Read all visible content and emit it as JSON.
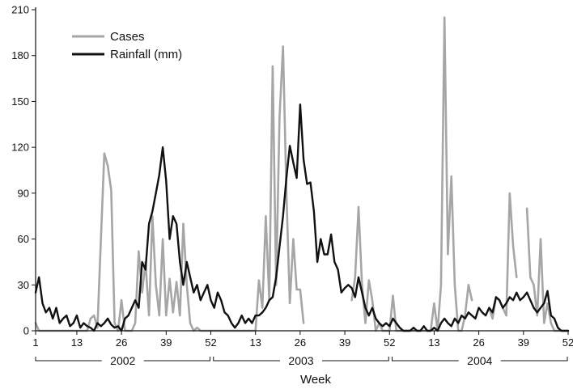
{
  "chart_data": {
    "type": "line",
    "xlabel": "Week",
    "ylabel": "",
    "ylim": [
      0,
      210
    ],
    "yticks": [
      0,
      30,
      60,
      90,
      120,
      150,
      180,
      210
    ],
    "xticks": [
      {
        "label": "1",
        "x": 1
      },
      {
        "label": "13",
        "x": 13
      },
      {
        "label": "26",
        "x": 26
      },
      {
        "label": "39",
        "x": 39
      },
      {
        "label": "52",
        "x": 52
      },
      {
        "label": "13",
        "x": 65
      },
      {
        "label": "26",
        "x": 78
      },
      {
        "label": "39",
        "x": 91
      },
      {
        "label": "52",
        "x": 104
      },
      {
        "label": "13",
        "x": 117
      },
      {
        "label": "26",
        "x": 130
      },
      {
        "label": "39",
        "x": 143
      },
      {
        "label": "52",
        "x": 156
      }
    ],
    "xlim": [
      1,
      156
    ],
    "years": [
      {
        "label": "2002",
        "start": 1,
        "end": 52
      },
      {
        "label": "2003",
        "start": 53,
        "end": 104
      },
      {
        "label": "2004",
        "start": 105,
        "end": 156
      }
    ],
    "legend": {
      "position": "top-left"
    },
    "series": [
      {
        "name": "Cases",
        "color": "#a6a6a6",
        "points": [
          [
            1,
            5
          ],
          [
            2,
            0
          ],
          [
            3,
            0
          ],
          [
            4,
            0
          ],
          [
            5,
            0
          ],
          [
            6,
            0
          ],
          [
            7,
            0
          ],
          [
            8,
            0
          ],
          [
            9,
            0
          ],
          [
            10,
            0
          ],
          [
            11,
            0
          ],
          [
            12,
            0
          ],
          [
            13,
            0
          ],
          [
            14,
            0
          ],
          [
            15,
            0
          ],
          [
            16,
            0
          ],
          [
            17,
            8
          ],
          [
            18,
            10
          ],
          [
            19,
            2
          ],
          [
            20,
            60
          ],
          [
            21,
            116
          ],
          [
            22,
            108
          ],
          [
            23,
            92
          ],
          [
            24,
            5
          ],
          [
            25,
            0
          ],
          [
            26,
            20
          ],
          [
            27,
            0
          ],
          [
            28,
            0
          ],
          [
            29,
            0
          ],
          [
            30,
            5
          ],
          [
            31,
            52
          ],
          [
            32,
            25
          ],
          [
            33,
            45
          ],
          [
            34,
            10
          ],
          [
            35,
            75
          ],
          [
            36,
            30
          ],
          [
            37,
            10
          ],
          [
            38,
            60
          ],
          [
            39,
            10
          ],
          [
            40,
            34
          ],
          [
            41,
            12
          ],
          [
            42,
            32
          ],
          [
            43,
            10
          ],
          [
            44,
            70
          ],
          [
            45,
            30
          ],
          [
            46,
            5
          ],
          [
            47,
            0
          ],
          [
            48,
            2
          ],
          [
            49,
            0
          ],
          [
            50,
            0
          ],
          [
            51,
            0
          ],
          [
            52,
            0
          ],
          [
            53,
            0
          ],
          [
            54,
            0
          ],
          [
            55,
            0
          ],
          [
            56,
            0
          ],
          [
            57,
            0
          ],
          [
            58,
            0
          ],
          [
            59,
            0
          ],
          [
            60,
            0
          ],
          [
            61,
            0
          ],
          [
            62,
            0
          ],
          [
            63,
            0
          ],
          [
            64,
            0
          ],
          [
            65,
            0
          ],
          [
            66,
            33
          ],
          [
            67,
            15
          ],
          [
            68,
            75
          ],
          [
            69,
            20
          ],
          [
            70,
            173
          ],
          [
            71,
            30
          ],
          [
            72,
            140
          ],
          [
            73,
            186
          ],
          [
            74,
            90
          ],
          [
            75,
            18
          ],
          [
            76,
            60
          ],
          [
            77,
            27
          ],
          [
            78,
            27
          ],
          [
            79,
            5
          ],
          [
            93,
            20
          ],
          [
            94,
            35
          ],
          [
            95,
            81
          ],
          [
            96,
            30
          ],
          [
            97,
            5
          ],
          [
            98,
            33
          ],
          [
            99,
            20
          ],
          [
            100,
            0
          ],
          [
            101,
            5
          ],
          [
            102,
            0
          ],
          [
            103,
            0
          ],
          [
            104,
            0
          ],
          [
            105,
            23
          ],
          [
            106,
            0
          ],
          [
            107,
            0
          ],
          [
            108,
            0
          ],
          [
            109,
            0
          ],
          [
            110,
            0
          ],
          [
            111,
            0
          ],
          [
            112,
            0
          ],
          [
            113,
            0
          ],
          [
            114,
            0
          ],
          [
            115,
            0
          ],
          [
            116,
            0
          ],
          [
            117,
            18
          ],
          [
            118,
            0
          ],
          [
            119,
            30
          ],
          [
            120,
            205
          ],
          [
            121,
            50
          ],
          [
            122,
            101
          ],
          [
            123,
            30
          ],
          [
            124,
            0
          ],
          [
            125,
            0
          ],
          [
            126,
            10
          ],
          [
            127,
            30
          ],
          [
            128,
            20
          ],
          [
            133,
            15
          ],
          [
            134,
            8
          ],
          [
            135,
            22
          ],
          [
            136,
            20
          ],
          [
            137,
            15
          ],
          [
            138,
            10
          ],
          [
            139,
            90
          ],
          [
            140,
            55
          ],
          [
            141,
            35
          ],
          [
            144,
            80
          ],
          [
            145,
            35
          ],
          [
            146,
            30
          ],
          [
            147,
            10
          ],
          [
            148,
            60
          ],
          [
            149,
            5
          ],
          [
            150,
            18
          ],
          [
            151,
            5
          ],
          [
            152,
            0
          ],
          [
            153,
            0
          ],
          [
            154,
            0
          ],
          [
            155,
            0
          ],
          [
            156,
            0
          ]
        ]
      },
      {
        "name": "Rainfall (mm)",
        "color": "#111111",
        "points": [
          [
            1,
            25
          ],
          [
            2,
            35
          ],
          [
            3,
            18
          ],
          [
            4,
            12
          ],
          [
            5,
            15
          ],
          [
            6,
            8
          ],
          [
            7,
            15
          ],
          [
            8,
            5
          ],
          [
            9,
            8
          ],
          [
            10,
            10
          ],
          [
            11,
            3
          ],
          [
            12,
            5
          ],
          [
            13,
            10
          ],
          [
            14,
            2
          ],
          [
            15,
            5
          ],
          [
            16,
            3
          ],
          [
            17,
            2
          ],
          [
            18,
            0
          ],
          [
            19,
            5
          ],
          [
            20,
            3
          ],
          [
            21,
            5
          ],
          [
            22,
            8
          ],
          [
            23,
            4
          ],
          [
            24,
            2
          ],
          [
            25,
            3
          ],
          [
            26,
            0
          ],
          [
            27,
            8
          ],
          [
            28,
            10
          ],
          [
            29,
            15
          ],
          [
            30,
            20
          ],
          [
            31,
            15
          ],
          [
            32,
            45
          ],
          [
            33,
            40
          ],
          [
            34,
            70
          ],
          [
            35,
            78
          ],
          [
            36,
            90
          ],
          [
            37,
            102
          ],
          [
            38,
            120
          ],
          [
            39,
            98
          ],
          [
            40,
            60
          ],
          [
            41,
            75
          ],
          [
            42,
            70
          ],
          [
            43,
            45
          ],
          [
            44,
            30
          ],
          [
            45,
            45
          ],
          [
            46,
            35
          ],
          [
            47,
            25
          ],
          [
            48,
            30
          ],
          [
            49,
            20
          ],
          [
            50,
            25
          ],
          [
            51,
            30
          ],
          [
            52,
            20
          ],
          [
            53,
            15
          ],
          [
            54,
            25
          ],
          [
            55,
            20
          ],
          [
            56,
            12
          ],
          [
            57,
            10
          ],
          [
            58,
            5
          ],
          [
            59,
            2
          ],
          [
            60,
            5
          ],
          [
            61,
            10
          ],
          [
            62,
            5
          ],
          [
            63,
            8
          ],
          [
            64,
            5
          ],
          [
            65,
            10
          ],
          [
            66,
            10
          ],
          [
            67,
            12
          ],
          [
            68,
            15
          ],
          [
            69,
            20
          ],
          [
            70,
            22
          ],
          [
            71,
            35
          ],
          [
            72,
            55
          ],
          [
            73,
            75
          ],
          [
            74,
            100
          ],
          [
            75,
            121
          ],
          [
            76,
            110
          ],
          [
            77,
            100
          ],
          [
            78,
            148
          ],
          [
            79,
            112
          ],
          [
            80,
            96
          ],
          [
            81,
            97
          ],
          [
            82,
            78
          ],
          [
            83,
            45
          ],
          [
            84,
            60
          ],
          [
            85,
            50
          ],
          [
            86,
            50
          ],
          [
            87,
            63
          ],
          [
            88,
            45
          ],
          [
            89,
            40
          ],
          [
            90,
            25
          ],
          [
            91,
            28
          ],
          [
            92,
            30
          ],
          [
            93,
            28
          ],
          [
            94,
            22
          ],
          [
            95,
            35
          ],
          [
            96,
            25
          ],
          [
            97,
            15
          ],
          [
            98,
            10
          ],
          [
            99,
            15
          ],
          [
            100,
            8
          ],
          [
            101,
            5
          ],
          [
            102,
            3
          ],
          [
            103,
            5
          ],
          [
            104,
            3
          ],
          [
            105,
            8
          ],
          [
            106,
            5
          ],
          [
            107,
            2
          ],
          [
            108,
            0
          ],
          [
            109,
            0
          ],
          [
            110,
            0
          ],
          [
            111,
            2
          ],
          [
            112,
            0
          ],
          [
            113,
            0
          ],
          [
            114,
            3
          ],
          [
            115,
            0
          ],
          [
            116,
            0
          ],
          [
            117,
            2
          ],
          [
            118,
            0
          ],
          [
            119,
            5
          ],
          [
            120,
            8
          ],
          [
            121,
            5
          ],
          [
            122,
            3
          ],
          [
            123,
            8
          ],
          [
            124,
            5
          ],
          [
            125,
            10
          ],
          [
            126,
            8
          ],
          [
            127,
            12
          ],
          [
            128,
            10
          ],
          [
            129,
            8
          ],
          [
            130,
            15
          ],
          [
            131,
            12
          ],
          [
            132,
            10
          ],
          [
            133,
            15
          ],
          [
            134,
            12
          ],
          [
            135,
            22
          ],
          [
            136,
            20
          ],
          [
            137,
            15
          ],
          [
            138,
            18
          ],
          [
            139,
            22
          ],
          [
            140,
            20
          ],
          [
            141,
            25
          ],
          [
            142,
            20
          ],
          [
            143,
            22
          ],
          [
            144,
            25
          ],
          [
            145,
            20
          ],
          [
            146,
            15
          ],
          [
            147,
            12
          ],
          [
            148,
            15
          ],
          [
            149,
            18
          ],
          [
            150,
            26
          ],
          [
            151,
            10
          ],
          [
            152,
            8
          ],
          [
            153,
            2
          ],
          [
            154,
            0
          ],
          [
            155,
            0
          ],
          [
            156,
            0
          ]
        ]
      }
    ]
  }
}
